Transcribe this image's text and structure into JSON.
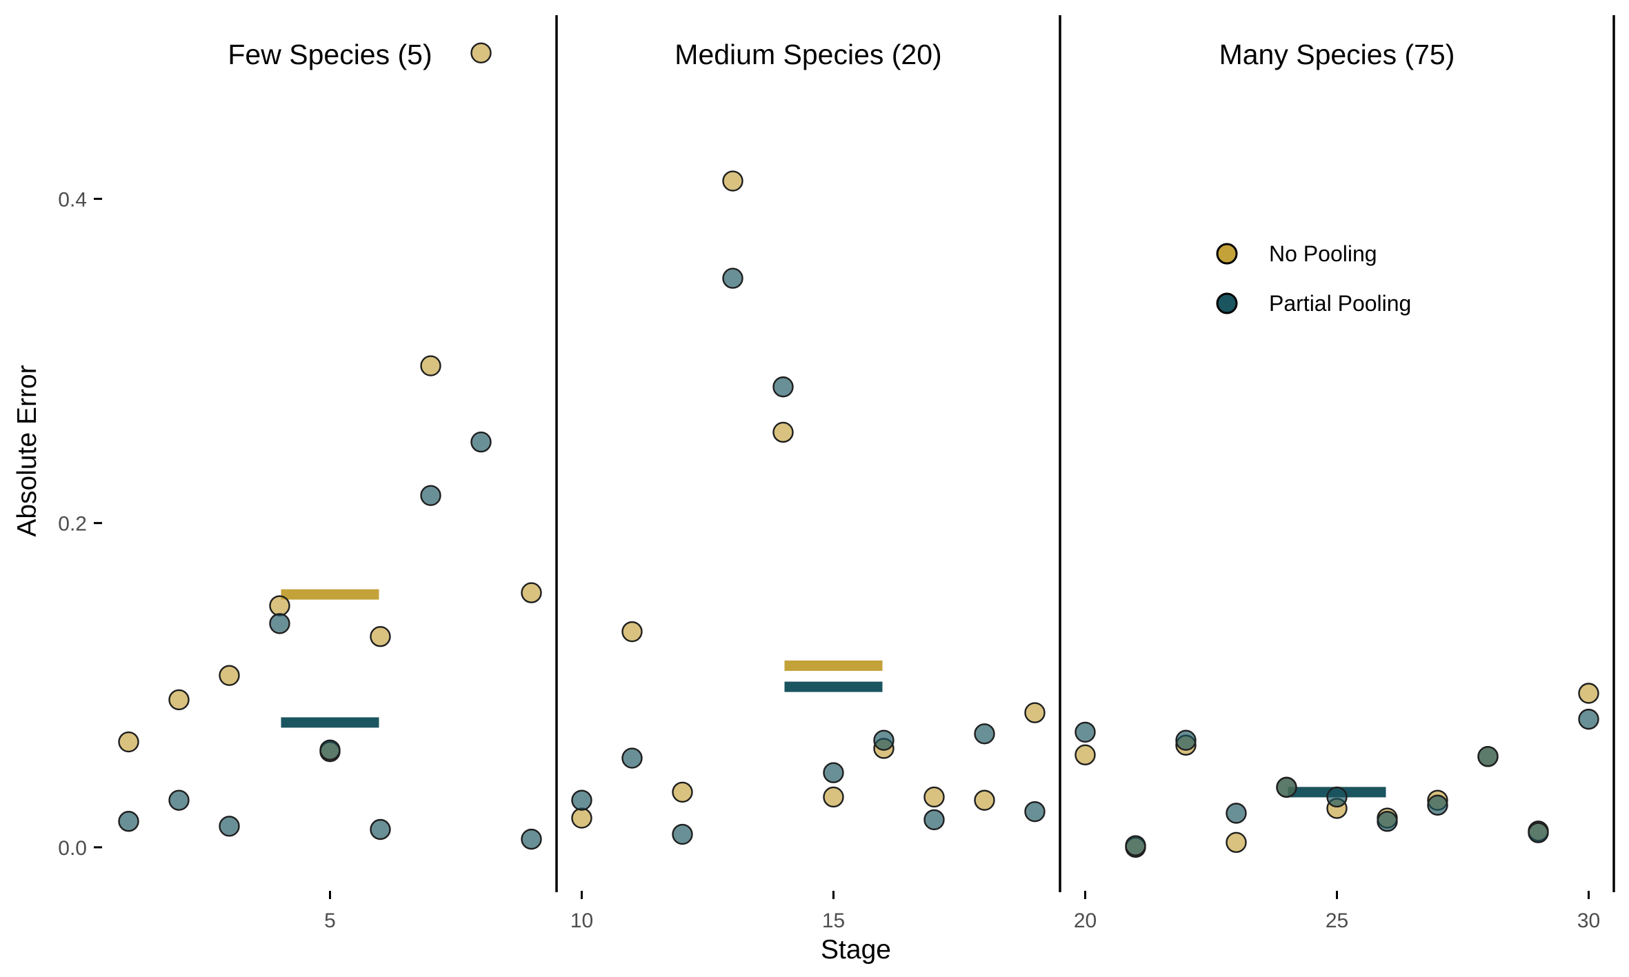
{
  "chart_data": {
    "type": "scatter",
    "xlabel": "Stage",
    "ylabel": "Absolute Error",
    "xlim": [
      0.5,
      30.5
    ],
    "ylim": [
      -0.026,
      0.515
    ],
    "x_ticks": [
      5,
      10,
      15,
      20,
      25,
      30
    ],
    "y_ticks": [
      0.0,
      0.2,
      0.4
    ],
    "y_tick_labels": [
      "0.0",
      "0.2",
      "0.4"
    ],
    "grid": false,
    "legend_position": "top-right",
    "colors": {
      "No Pooling": "#c4a23a",
      "Partial Pooling": "#1a5560"
    },
    "panels": [
      {
        "title": "Few Species (5)",
        "x_range": [
          0.5,
          9.5
        ]
      },
      {
        "title": "Medium Species (20)",
        "x_range": [
          9.5,
          19.5
        ]
      },
      {
        "title": "Many Species (75)",
        "x_range": [
          19.5,
          30.5
        ]
      }
    ],
    "separators": [
      9.5,
      19.5,
      30.5
    ],
    "series": [
      {
        "name": "No Pooling",
        "color": "#c4a23a",
        "points": [
          [
            1,
            0.065
          ],
          [
            2,
            0.091
          ],
          [
            3,
            0.106
          ],
          [
            4,
            0.149
          ],
          [
            5,
            0.059
          ],
          [
            6,
            0.13
          ],
          [
            7,
            0.297
          ],
          [
            8,
            0.49
          ],
          [
            9,
            0.157
          ],
          [
            10,
            0.018
          ],
          [
            11,
            0.133
          ],
          [
            12,
            0.034
          ],
          [
            13,
            0.411
          ],
          [
            14,
            0.256
          ],
          [
            15,
            0.031
          ],
          [
            16,
            0.061
          ],
          [
            17,
            0.031
          ],
          [
            18,
            0.029
          ],
          [
            19,
            0.083
          ],
          [
            20,
            0.057
          ],
          [
            21,
            0.0
          ],
          [
            22,
            0.063
          ],
          [
            23,
            0.003
          ],
          [
            24,
            0.037
          ],
          [
            25,
            0.024
          ],
          [
            26,
            0.018
          ],
          [
            27,
            0.029
          ],
          [
            28,
            0.056
          ],
          [
            29,
            0.01
          ],
          [
            30,
            0.095
          ]
        ],
        "means": [
          {
            "x_from": 4,
            "x_to": 6,
            "value": 0.156
          },
          {
            "x_from": 14,
            "x_to": 16,
            "value": 0.112
          },
          {
            "x_from": 24,
            "x_to": 26,
            "value": 0.034
          }
        ]
      },
      {
        "name": "Partial Pooling",
        "color": "#1a5560",
        "points": [
          [
            1,
            0.016
          ],
          [
            2,
            0.029
          ],
          [
            3,
            0.013
          ],
          [
            4,
            0.138
          ],
          [
            5,
            0.06
          ],
          [
            6,
            0.011
          ],
          [
            7,
            0.217
          ],
          [
            8,
            0.25
          ],
          [
            9,
            0.005
          ],
          [
            10,
            0.029
          ],
          [
            11,
            0.055
          ],
          [
            12,
            0.008
          ],
          [
            13,
            0.351
          ],
          [
            14,
            0.284
          ],
          [
            15,
            0.046
          ],
          [
            16,
            0.066
          ],
          [
            17,
            0.017
          ],
          [
            18,
            0.07
          ],
          [
            19,
            0.022
          ],
          [
            20,
            0.071
          ],
          [
            21,
            0.001
          ],
          [
            22,
            0.066
          ],
          [
            23,
            0.021
          ],
          [
            24,
            0.037
          ],
          [
            25,
            0.031
          ],
          [
            26,
            0.016
          ],
          [
            27,
            0.026
          ],
          [
            28,
            0.056
          ],
          [
            29,
            0.009
          ],
          [
            30,
            0.079
          ]
        ],
        "means": [
          {
            "x_from": 4,
            "x_to": 6,
            "value": 0.077
          },
          {
            "x_from": 14,
            "x_to": 16,
            "value": 0.099
          },
          {
            "x_from": 24,
            "x_to": 26,
            "value": 0.034
          }
        ]
      }
    ]
  }
}
